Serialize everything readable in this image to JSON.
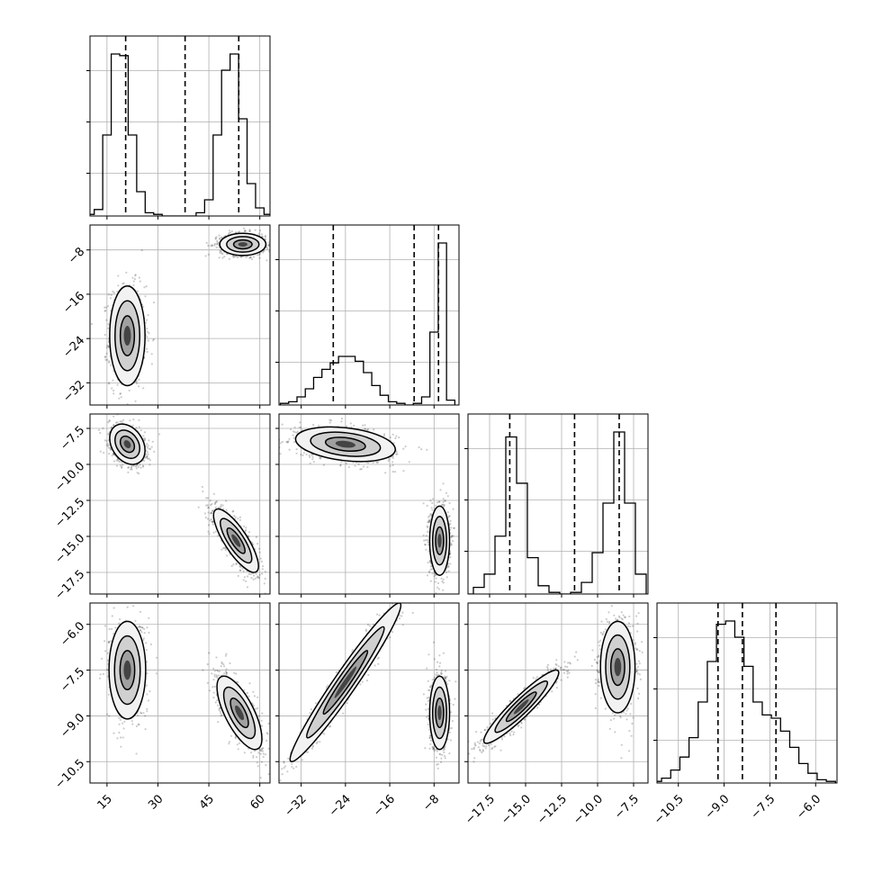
{
  "chart_data": {
    "type": "corner",
    "grid": true,
    "quantile_lines": "dashed",
    "parameters": [
      {
        "ticks": [
          15,
          30,
          45,
          60
        ],
        "tick_labels": [
          "15",
          "30",
          "45",
          "60"
        ],
        "range": [
          10,
          63
        ],
        "quantiles": [
          20.5,
          38,
          53.8
        ],
        "hist": {
          "x": [
            10,
            12.5,
            15,
            17.5,
            20,
            22.5,
            25,
            27.5,
            30,
            32.5,
            35,
            37.5,
            40,
            42.5,
            45,
            47.5,
            50,
            52.5,
            55,
            57.5,
            60,
            62.5
          ],
          "counts": [
            0.01,
            0.04,
            0.5,
            1.0,
            0.99,
            0.5,
            0.15,
            0.02,
            0.01,
            0.0,
            0.0,
            0.0,
            0.0,
            0.02,
            0.1,
            0.5,
            0.9,
            1.0,
            0.6,
            0.2,
            0.05,
            0.01
          ]
        }
      },
      {
        "ticks": [
          -32,
          -24,
          -16,
          -8
        ],
        "tick_labels": [
          "−32",
          "−24",
          "−16",
          "−8"
        ],
        "range": [
          -36,
          -3.5
        ],
        "quantiles": [
          -26.2,
          -11.6,
          -7.2
        ],
        "hist": {
          "x": [
            -35,
            -33.5,
            -32,
            -30.5,
            -29,
            -27.5,
            -26,
            -24.5,
            -23,
            -21.5,
            -20,
            -18.5,
            -17,
            -15.5,
            -14,
            -12.5,
            -11,
            -9.5,
            -8,
            -6.5,
            -5
          ],
          "counts": [
            0.01,
            0.02,
            0.05,
            0.1,
            0.17,
            0.22,
            0.26,
            0.3,
            0.3,
            0.27,
            0.2,
            0.12,
            0.06,
            0.02,
            0.01,
            0.0,
            0.01,
            0.05,
            0.45,
            1.0,
            0.03
          ]
        }
      },
      {
        "ticks": [
          -17.5,
          -15,
          -12.5,
          -10,
          -7.5
        ],
        "tick_labels": [
          "−17.5",
          "−15.0",
          "−12.5",
          "−10.0",
          "−7.5"
        ],
        "range": [
          -19,
          -6.5
        ],
        "quantiles": [
          -16.1,
          -11.6,
          -8.5
        ],
        "hist": {
          "x": [
            -19,
            -18.25,
            -17.5,
            -16.75,
            -16,
            -15.25,
            -14.5,
            -13.75,
            -13,
            -12.25,
            -11.5,
            -10.75,
            -10,
            -9.25,
            -8.5,
            -7.75,
            -7
          ],
          "counts": [
            0.0,
            0.04,
            0.12,
            0.35,
            0.95,
            0.67,
            0.22,
            0.05,
            0.01,
            0.0,
            0.01,
            0.07,
            0.25,
            0.55,
            0.98,
            0.55,
            0.12
          ]
        }
      },
      {
        "ticks": [
          -10.5,
          -9,
          -7.5,
          -6
        ],
        "tick_labels": [
          "−10.5",
          "−9.0",
          "−7.5",
          "−6.0"
        ],
        "range": [
          -11.2,
          -5.3
        ],
        "quantiles": [
          -9.2,
          -8.4,
          -7.3
        ],
        "hist": {
          "x": [
            -11.2,
            -10.9,
            -10.6,
            -10.3,
            -10.0,
            -9.7,
            -9.4,
            -9.1,
            -8.8,
            -8.5,
            -8.2,
            -7.9,
            -7.6,
            -7.3,
            -7.0,
            -6.7,
            -6.4,
            -6.1,
            -5.8,
            -5.5
          ],
          "counts": [
            0.01,
            0.03,
            0.08,
            0.16,
            0.28,
            0.5,
            0.75,
            0.98,
            1.0,
            0.9,
            0.72,
            0.5,
            0.42,
            0.4,
            0.32,
            0.22,
            0.12,
            0.06,
            0.02,
            0.01
          ]
        }
      }
    ],
    "scatter_clusters": [
      {
        "xi": 0,
        "yi": 1,
        "clusters": [
          {
            "cx": 21,
            "cy": -23.5,
            "sx": 2.6,
            "sy": 4.5,
            "rho": 0.0
          },
          {
            "cx": 55,
            "cy": -7.0,
            "sx": 3.4,
            "sy": 1.0,
            "rho": 0.0
          }
        ]
      },
      {
        "xi": 0,
        "yi": 2,
        "clusters": [
          {
            "cx": 21,
            "cy": -8.6,
            "sx": 2.6,
            "sy": 0.7,
            "rho": -0.3
          },
          {
            "cx": 53,
            "cy": -15.3,
            "sx": 3.3,
            "sy": 1.1,
            "rho": -0.8
          }
        ]
      },
      {
        "xi": 1,
        "yi": 2,
        "clusters": [
          {
            "cx": -24,
            "cy": -8.6,
            "sx": 4.5,
            "sy": 0.6,
            "rho": -0.3
          },
          {
            "cx": -7.0,
            "cy": -15.3,
            "sx": 0.9,
            "sy": 1.2,
            "rho": 0.0
          }
        ]
      },
      {
        "xi": 0,
        "yi": 3,
        "clusters": [
          {
            "cx": 21,
            "cy": -7.5,
            "sx": 2.7,
            "sy": 0.8,
            "rho": 0.0
          },
          {
            "cx": 54,
            "cy": -8.9,
            "sx": 3.3,
            "sy": 0.6,
            "rho": -0.7
          }
        ]
      },
      {
        "xi": 1,
        "yi": 3,
        "clusters": [
          {
            "cx": -24,
            "cy": -7.9,
            "sx": 5.0,
            "sy": 1.3,
            "rho": 0.97
          },
          {
            "cx": -7.0,
            "cy": -8.9,
            "sx": 0.9,
            "sy": 0.6,
            "rho": 0.0
          }
        ]
      },
      {
        "xi": 2,
        "yi": 3,
        "clusters": [
          {
            "cx": -15.3,
            "cy": -8.7,
            "sx": 1.3,
            "sy": 0.6,
            "rho": 0.93
          },
          {
            "cx": -8.6,
            "cy": -7.4,
            "sx": 0.6,
            "sy": 0.75,
            "rho": 0.0
          }
        ]
      }
    ]
  }
}
